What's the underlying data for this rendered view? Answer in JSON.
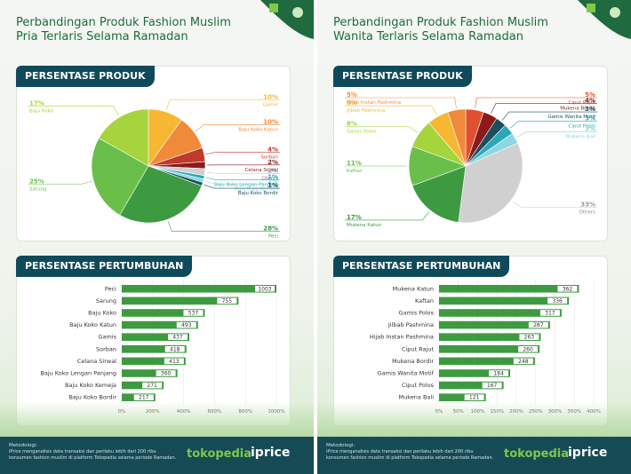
{
  "left": {
    "title_lines": [
      "Perbandingan Produk Fashion Muslim",
      "Pria Terlaris Selama Ramadan"
    ],
    "pie_header": "PERSENTASE PRODUK",
    "bar_header": "PERSENTASE PERTUMBUHAN",
    "footer": {
      "method_title": "Metodologi:",
      "method_text": "iPrice menganalisis data transaksi dan perilaku lebih dari 200 ribu konsumen fashion muslim di platform Tokopedia selama periode Ramadan.",
      "logo_tokopedia": "tokopedia",
      "logo_iprice": "iprice"
    }
  },
  "right": {
    "title_lines": [
      "Perbandingan Produk Fashion Muslim",
      "Wanita Terlaris Selama Ramadan"
    ],
    "pie_header": "PERSENTASE PRODUK",
    "bar_header": "PERSENTASE PERTUMBUHAN",
    "footer": {
      "method_title": "Metodologi:",
      "method_text": "iPrice menganalisis data transaksi dan perilaku lebih dari 200 ribu konsumen fashion muslim di platform Tokopedia selama periode Ramadan.",
      "logo_tokopedia": "tokopedia",
      "logo_iprice": "iprice"
    }
  },
  "chart_data": [
    {
      "type": "pie",
      "title": "PERSENTASE PRODUK",
      "slices": [
        {
          "label": "Gamis",
          "value": 10,
          "text": "10%",
          "color": "#f7b733"
        },
        {
          "label": "Baju Koko Katun",
          "value": 10,
          "text": "10%",
          "color": "#f08a3a"
        },
        {
          "label": "Sorban",
          "value": 4,
          "text": "4%",
          "color": "#c0392b"
        },
        {
          "label": "Celana Sirwal",
          "value": 2,
          "text": "2%",
          "color": "#8b1a1a"
        },
        {
          "label": "Others",
          "value": 2,
          "text": "2%",
          "color": "#d0d0d0"
        },
        {
          "label": "Baju Koko Lengan Panjang",
          "value": 1,
          "text": "1%",
          "color": "#2aa8b8"
        },
        {
          "label": "Baju Koko Kemeja",
          "value": 1,
          "text": "1%",
          "color": "#8ad8e0"
        },
        {
          "label": "Baju Koko Bordir",
          "value": 1,
          "text": "1%",
          "color": "#1b4f5e"
        },
        {
          "label": "Peci",
          "value": 28,
          "text": "28%",
          "color": "#3d9a40"
        },
        {
          "label": "Sarung",
          "value": 25,
          "text": "25%",
          "color": "#6abf4b"
        },
        {
          "label": "Baju Koko",
          "value": 17,
          "text": "17%",
          "color": "#a6d43c"
        }
      ]
    },
    {
      "type": "bar",
      "title": "PERSENTASE PERTUMBUHAN",
      "categories": [
        "Peci",
        "Sarung",
        "Baju Koko",
        "Baju Koko Katun",
        "Gamis",
        "Sorban",
        "Celana Sirwal",
        "Baju Koko Lengan Panjang",
        "Baju Koko Kemeja",
        "Baju Koko Bordir"
      ],
      "values": [
        1003,
        755,
        537,
        493,
        437,
        418,
        413,
        360,
        271,
        217
      ],
      "xticks": [
        "0%",
        "200%",
        "400%",
        "600%",
        "800%",
        "1000%"
      ],
      "xlim": [
        0,
        1000
      ],
      "color": "#3d9a40"
    },
    {
      "type": "pie",
      "title": "PERSENTASE PRODUK",
      "slices": [
        {
          "label": "Ciput Rajut",
          "value": 5,
          "text": "5%",
          "color": "#e0502e"
        },
        {
          "label": "Mukena Bordir",
          "value": 4,
          "text": "4%",
          "color": "#8b1a1a"
        },
        {
          "label": "Gamis Wanita Motif",
          "value": 3,
          "text": "3%",
          "color": "#1b4f5e"
        },
        {
          "label": "Ciput Polos",
          "value": 3,
          "text": "3%",
          "color": "#2aa8b8"
        },
        {
          "label": "Mukena Bali",
          "value": 3,
          "text": "3%",
          "color": "#8ad8e0"
        },
        {
          "label": "Others",
          "value": 33,
          "text": "33%",
          "color": "#d0d0d0"
        },
        {
          "label": "Mukena Katun",
          "value": 17,
          "text": "17%",
          "color": "#3d9a40"
        },
        {
          "label": "Kaftan",
          "value": 11,
          "text": "11%",
          "color": "#6abf4b"
        },
        {
          "label": "Gamis Polos",
          "value": 8,
          "text": "8%",
          "color": "#a6d43c"
        },
        {
          "label": "Jilbab Pashmina",
          "value": 6,
          "text": "6%",
          "color": "#f7b733"
        },
        {
          "label": "Hijab Instan Pashmina",
          "value": 5,
          "text": "5%",
          "color": "#f08a3a"
        }
      ]
    },
    {
      "type": "bar",
      "title": "PERSENTASE PERTUMBUHAN",
      "categories": [
        "Mukena Katun",
        "Kaftan",
        "Gamis Polos",
        "Jilbab Pashmina",
        "Hijab Instan Pashmina",
        "Ciput Rajut",
        "Mukena Bordir",
        "Gamis Wanita Motif",
        "Ciput Polos",
        "Mukena Bali"
      ],
      "values": [
        362,
        336,
        317,
        287,
        263,
        260,
        248,
        184,
        167,
        121
      ],
      "xticks": [
        "0%",
        "50%",
        "100%",
        "150%",
        "200%",
        "250%",
        "300%",
        "350%",
        "400%"
      ],
      "xlim": [
        0,
        400
      ],
      "color": "#3d9a40"
    }
  ]
}
